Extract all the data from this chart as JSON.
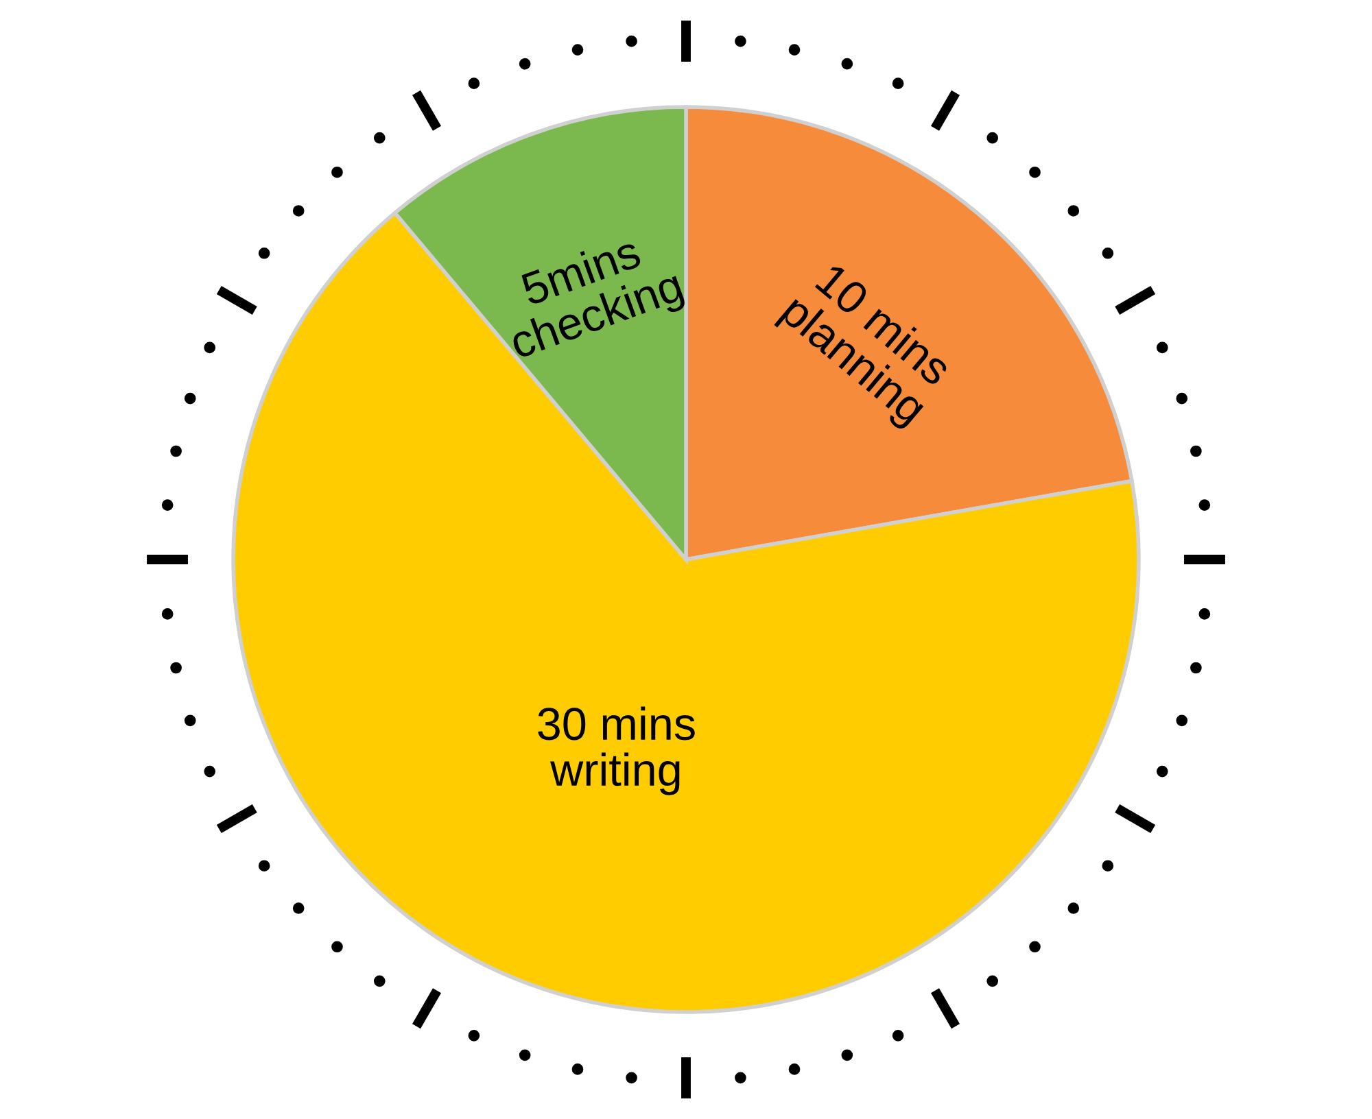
{
  "chart_data": {
    "type": "pie",
    "categories": [
      "10 mins\nplanning",
      "30 mins\nwriting",
      "5mins\nchecking"
    ],
    "values": [
      10,
      30,
      5
    ],
    "colors": [
      "#f68b3c",
      "#ffcc00",
      "#7bb84e"
    ],
    "legend": false
  }
}
